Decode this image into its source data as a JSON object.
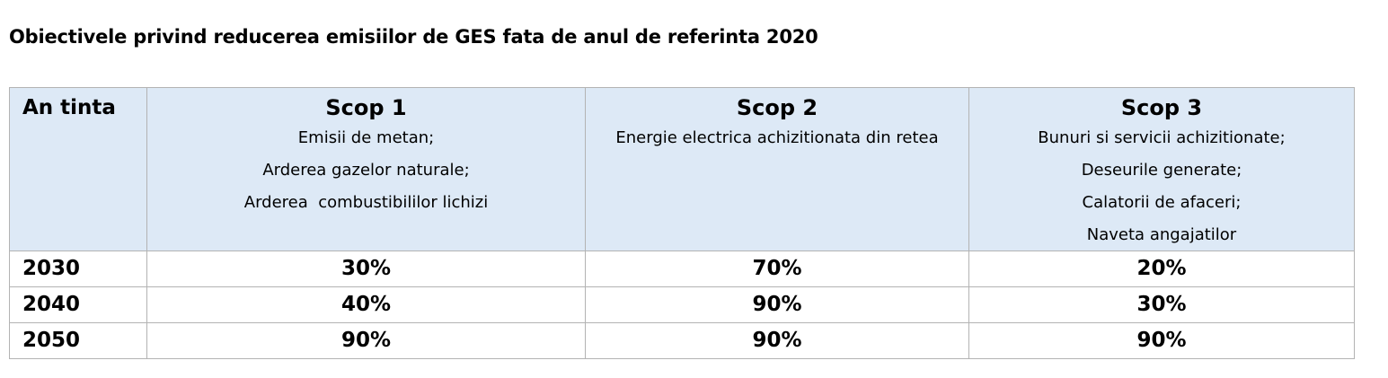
{
  "document": {
    "title": "Obiectivele privind reducerea emisiilor de GES fata de anul de referinta 2020"
  },
  "table": {
    "headers": {
      "target_year": "An tinta",
      "scopes": [
        {
          "label": "Scop 1",
          "lines": [
            "Emisii de metan;",
            "Arderea gazelor naturale;",
            "Arderea  combustibililor lichizi"
          ]
        },
        {
          "label": "Scop 2",
          "lines": [
            "Energie electrica achizitionata din retea"
          ]
        },
        {
          "label": "Scop 3",
          "lines": [
            "Bunuri si servicii achizitionate;",
            "Deseurile generate;",
            "Calatorii de afaceri;",
            "Naveta angajatilor"
          ]
        }
      ]
    },
    "rows": [
      {
        "year": "2030",
        "values": [
          "30%",
          "70%",
          "20%"
        ]
      },
      {
        "year": "2040",
        "values": [
          "40%",
          "90%",
          "30%"
        ]
      },
      {
        "year": "2050",
        "values": [
          "90%",
          "90%",
          "90%"
        ]
      }
    ]
  },
  "colors": {
    "header_background": "#dde9f6",
    "grid_border": "#b3b3b3"
  }
}
